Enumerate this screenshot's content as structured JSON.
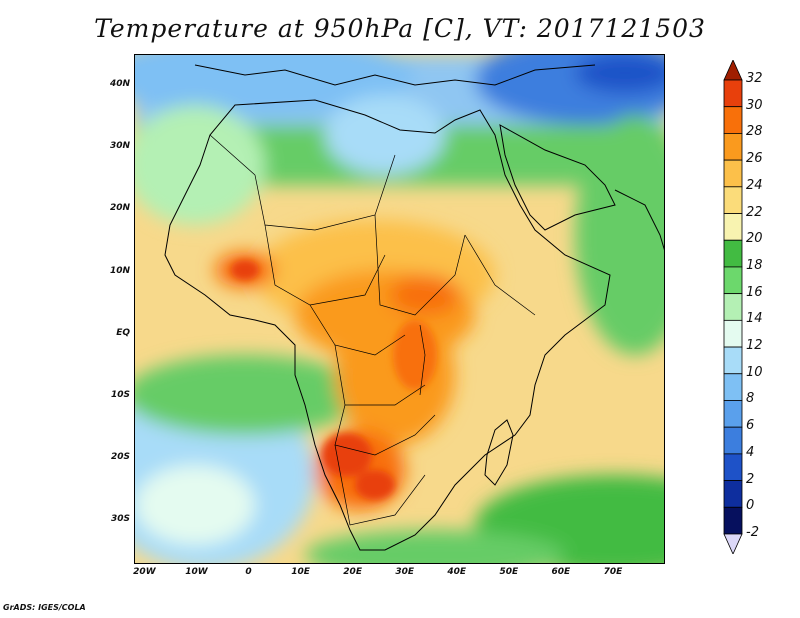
{
  "title": "Temperature at 950hPa [C], VT: 2017121503",
  "credit": "GrADS: IGES/COLA",
  "map": {
    "lon_range": [
      -22,
      80
    ],
    "lat_range": [
      -37,
      45
    ],
    "y_ticks": [
      {
        "lat": 40,
        "label": "40N"
      },
      {
        "lat": 30,
        "label": "30N"
      },
      {
        "lat": 20,
        "label": "20N"
      },
      {
        "lat": 10,
        "label": "10N"
      },
      {
        "lat": 0,
        "label": "EQ"
      },
      {
        "lat": -10,
        "label": "10S"
      },
      {
        "lat": -20,
        "label": "20S"
      },
      {
        "lat": -30,
        "label": "30S"
      }
    ],
    "x_ticks": [
      {
        "lon": -20,
        "label": "20W"
      },
      {
        "lon": -10,
        "label": "10W"
      },
      {
        "lon": 0,
        "label": "0"
      },
      {
        "lon": 10,
        "label": "10E"
      },
      {
        "lon": 20,
        "label": "20E"
      },
      {
        "lon": 30,
        "label": "30E"
      },
      {
        "lon": 40,
        "label": "40E"
      },
      {
        "lon": 50,
        "label": "50E"
      },
      {
        "lon": 60,
        "label": "60E"
      },
      {
        "lon": 70,
        "label": "70E"
      }
    ]
  },
  "colorbar": {
    "unit": "C",
    "levels": [
      "32",
      "30",
      "28",
      "26",
      "24",
      "22",
      "20",
      "18",
      "16",
      "14",
      "12",
      "10",
      "8",
      "6",
      "4",
      "2",
      "0",
      "-2"
    ],
    "colors": [
      "#a01e00",
      "#e8400c",
      "#f8700a",
      "#fa9a1e",
      "#fcc04a",
      "#fbdc7a",
      "#f8f3b0",
      "#42bb42",
      "#6cd86c",
      "#b4f0b4",
      "#e4fbf0",
      "#a8dcf8",
      "#7ec0f4",
      "#5aa0ec",
      "#3c7ede",
      "#1e52c8",
      "#0e2e9e",
      "#06105e",
      "#dcd8f8"
    ]
  }
}
